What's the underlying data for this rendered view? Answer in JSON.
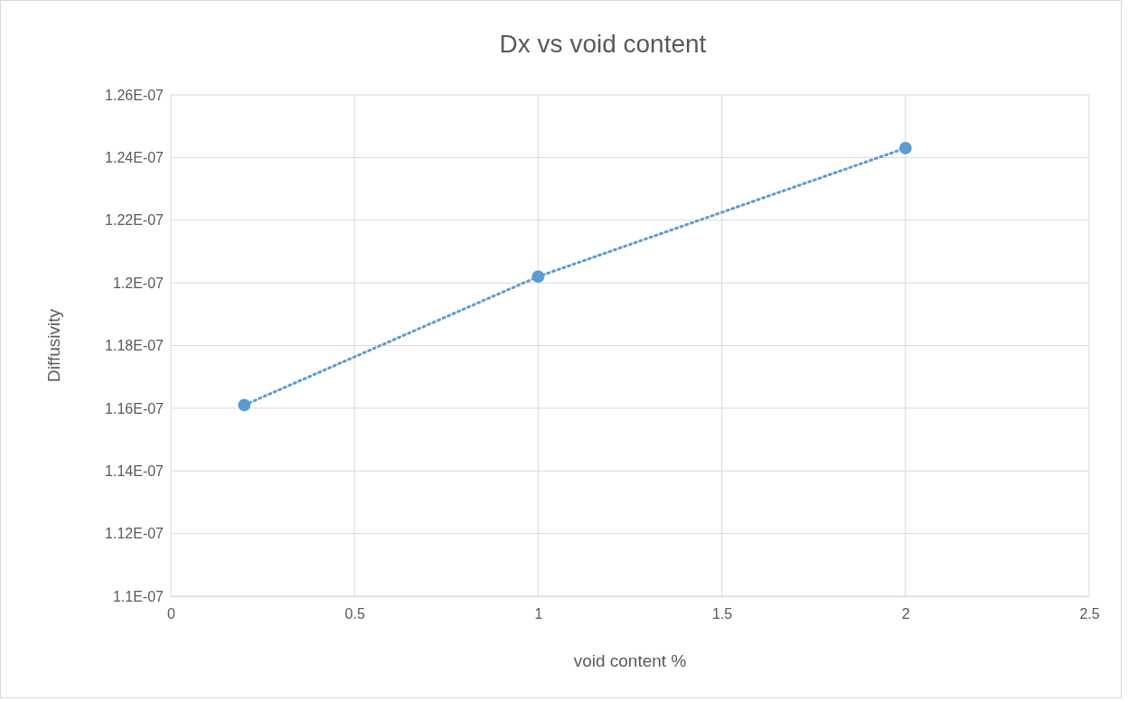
{
  "chart_data": {
    "type": "line",
    "title": "Dx vs void content",
    "xlabel": "void content %",
    "ylabel": "Diffusivity",
    "x": [
      0.2,
      1,
      2
    ],
    "series": [
      {
        "color": "#5b9bd5",
        "values": [
          1.161e-07,
          1.202e-07,
          1.243e-07
        ]
      }
    ],
    "xlim": [
      0,
      2.5
    ],
    "xticks": [
      0,
      0.5,
      1,
      1.5,
      2,
      2.5
    ],
    "ylim": [
      1.1e-07,
      1.26e-07
    ],
    "yticks": [
      {
        "value": 1.1e-07,
        "label": "1.1E-07"
      },
      {
        "value": 1.12e-07,
        "label": "1.12E-07"
      },
      {
        "value": 1.14e-07,
        "label": "1.14E-07"
      },
      {
        "value": 1.16e-07,
        "label": "1.16E-07"
      },
      {
        "value": 1.18e-07,
        "label": "1.18E-07"
      },
      {
        "value": 1.2e-07,
        "label": "1.2E-07"
      },
      {
        "value": 1.22e-07,
        "label": "1.22E-07"
      },
      {
        "value": 1.24e-07,
        "label": "1.24E-07"
      },
      {
        "value": 1.26e-07,
        "label": "1.26E-07"
      }
    ],
    "grid": true,
    "marker": "circle",
    "line_style": "dotted"
  }
}
